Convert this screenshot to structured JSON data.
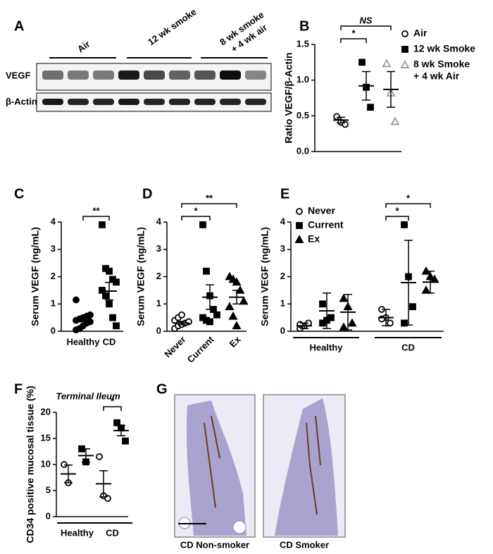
{
  "panel_labels": [
    "A",
    "B",
    "C",
    "D",
    "E",
    "F",
    "G"
  ],
  "blot": {
    "lane_groups": [
      [
        "Air"
      ],
      [
        "12 wk smoke"
      ],
      [
        "8 wk smoke",
        "+ 4 wk air"
      ]
    ],
    "rows": [
      "VEGF",
      "β-Actin"
    ]
  },
  "micrographs": {
    "captions": [
      "CD Non-smoker",
      "CD Smoker"
    ]
  },
  "chart_data": [
    {
      "type": "dotplot",
      "y_label": "Ratio VEGF/β-Actin",
      "ylim": [
        0,
        1.5
      ],
      "yticks": [
        {
          "value": 0,
          "label": "0.0"
        },
        0.5,
        {
          "value": 1,
          "label": "1.0"
        },
        1.5
      ],
      "legend": [
        {
          "name": [
            "Air"
          ],
          "marker": "circle-open",
          "color": "#000000"
        },
        {
          "name": [
            "12 wk Smoke"
          ],
          "marker": "square",
          "color": "#000000"
        },
        {
          "name": [
            "8 wk Smoke",
            "+ 4 wk Air"
          ],
          "marker": "triangle-open",
          "color": "#999999"
        }
      ],
      "categories": [
        {
          "groups": [
            {
              "marker": "circle-open",
              "color": "#000000",
              "points": [
                0.49,
                0.41,
                0.38
              ],
              "mean": 0.44,
              "error": 0.04
            },
            {
              "marker": "square",
              "color": "#000000",
              "points": [
                1.25,
                0.9,
                0.62
              ],
              "mean": 0.92,
              "error": 0.2
            },
            {
              "marker": "triangle-open",
              "color": "#999999",
              "points": [
                1.23,
                0.82,
                0.42
              ],
              "mean": 0.87,
              "error": 0.25
            }
          ]
        }
      ],
      "annotations": [
        {
          "text": "*",
          "groups": [
            0,
            1
          ]
        },
        {
          "text": "NS",
          "groups": [
            0,
            2
          ]
        }
      ]
    },
    {
      "type": "dotplot",
      "y_label": "Serum VEGF (ng/mL)",
      "ylim": [
        0,
        4
      ],
      "yticks": [
        0,
        1,
        2,
        3,
        4
      ],
      "categories": [
        {
          "name": "Healthy",
          "groups": [
            {
              "marker": "circle",
              "color": "#000000",
              "points": [
                0.05,
                0.1,
                0.2,
                0.3,
                0.35,
                0.4,
                0.45,
                0.5,
                0.55,
                0.6,
                1.15
              ],
              "mean": 0.45,
              "error": 0.1
            }
          ]
        },
        {
          "name": "CD",
          "groups": [
            {
              "marker": "square",
              "color": "#000000",
              "points": [
                3.9,
                2.3,
                2.2,
                1.9,
                1.8,
                1.5,
                1.3,
                1.0,
                0.5,
                0.2
              ],
              "mean": 1.47,
              "error": 0.32
            }
          ]
        }
      ],
      "annotations": [
        {
          "text": "**",
          "groups": [
            0,
            1
          ]
        }
      ]
    },
    {
      "type": "dotplot",
      "y_label": "Serum VEGF (ng/mL)",
      "ylim": [
        0,
        4
      ],
      "yticks": [
        0,
        1,
        2,
        3,
        4
      ],
      "categories": [
        {
          "name": "Never",
          "groups": [
            {
              "marker": "circle-open",
              "color": "#000000",
              "points": [
                0.1,
                0.2,
                0.25,
                0.3,
                0.35,
                0.4,
                0.5,
                0.6
              ],
              "mean": 0.3,
              "error": 0.06
            }
          ]
        },
        {
          "name": "Current",
          "groups": [
            {
              "marker": "square",
              "color": "#000000",
              "points": [
                3.9,
                2.2,
                1.3,
                0.8,
                0.6,
                0.5,
                0.4,
                0.35
              ],
              "mean": 1.25,
              "error": 0.45
            }
          ]
        },
        {
          "name": "Ex",
          "groups": [
            {
              "marker": "triangle",
              "color": "#000000",
              "points": [
                2.0,
                1.9,
                1.8,
                1.5,
                1.1,
                0.9,
                0.55,
                0.2
              ],
              "mean": 1.25,
              "error": 0.25
            }
          ]
        }
      ],
      "annotations": [
        {
          "text": "*",
          "groups": [
            0,
            1
          ]
        },
        {
          "text": "**",
          "groups": [
            0,
            2
          ]
        }
      ]
    },
    {
      "type": "dotplot",
      "y_label": "Serum VEGF (ng/mL)",
      "ylim": [
        0,
        4
      ],
      "yticks": [
        0,
        1,
        2,
        3,
        4
      ],
      "legend": [
        {
          "name": [
            "Never"
          ],
          "marker": "circle-open",
          "color": "#000000"
        },
        {
          "name": [
            "Current"
          ],
          "marker": "square",
          "color": "#000000"
        },
        {
          "name": [
            "Ex"
          ],
          "marker": "triangle",
          "color": "#000000"
        }
      ],
      "categories": [
        {
          "name": "Healthy",
          "groups": [
            {
              "marker": "circle-open",
              "color": "#000000",
              "points": [
                0.1,
                0.2,
                0.3,
                0.25
              ],
              "mean": 0.2,
              "error": 0.1
            },
            {
              "marker": "square",
              "color": "#000000",
              "points": [
                1.0,
                0.4,
                0.5,
                0.3
              ],
              "mean": 0.75,
              "error": 0.65
            },
            {
              "marker": "triangle",
              "color": "#000000",
              "points": [
                1.2,
                0.9,
                0.3,
                0.15
              ],
              "mean": 0.7,
              "error": 0.65
            }
          ]
        },
        {
          "name": "CD",
          "groups": [
            {
              "marker": "circle-open",
              "color": "#000000",
              "points": [
                0.8,
                0.5,
                0.3,
                0.45
              ],
              "mean": 0.5,
              "error": 0.3
            },
            {
              "marker": "square",
              "color": "#000000",
              "points": [
                3.9,
                2.0,
                0.9,
                0.3
              ],
              "mean": 1.78,
              "error": 1.55
            },
            {
              "marker": "triangle",
              "color": "#000000",
              "points": [
                2.2,
                2.0,
                1.9,
                1.5
              ],
              "mean": 1.8,
              "error": 0.4
            }
          ]
        }
      ],
      "annotations": [
        {
          "text": "*",
          "groups": [
            3,
            4
          ]
        },
        {
          "text": "*",
          "groups": [
            3,
            5
          ]
        }
      ]
    },
    {
      "type": "dotplot",
      "title": "Terminal Ileum",
      "y_label": "CD34 positive mucosal tissue (%)",
      "ylim": [
        0,
        20
      ],
      "yticks": [
        0,
        5,
        10,
        15,
        20
      ],
      "categories": [
        {
          "name": "Healthy",
          "groups": [
            {
              "marker": "circle-open",
              "color": "#000000",
              "points": [
                10,
                6.5
              ],
              "mean": 8.2,
              "error": 1.7
            },
            {
              "marker": "square",
              "color": "#000000",
              "points": [
                13,
                10.5
              ],
              "mean": 11.7,
              "error": 1.3
            }
          ]
        },
        {
          "name": "CD",
          "groups": [
            {
              "marker": "circle-open",
              "color": "#000000",
              "points": [
                11.5,
                4,
                3.5
              ],
              "mean": 6.3,
              "error": 2.5
            },
            {
              "marker": "square",
              "color": "#000000",
              "points": [
                18,
                17,
                14.5
              ],
              "mean": 16.5,
              "error": 1
            }
          ]
        }
      ],
      "annotations": [
        {
          "text": "*",
          "groups": [
            2,
            3
          ]
        }
      ]
    }
  ]
}
